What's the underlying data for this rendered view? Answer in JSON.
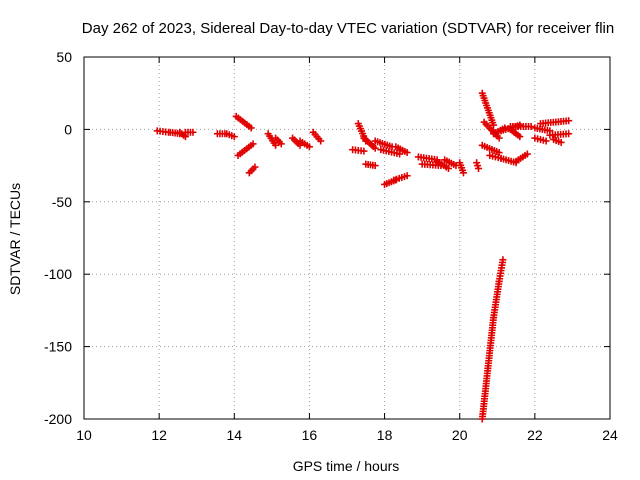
{
  "chart_data": {
    "type": "scatter",
    "title": "Day 262 of 2023, Sidereal Day-to-day VTEC variation (SDTVAR) for receiver flin",
    "xlabel": "GPS time / hours",
    "ylabel": "SDTVAR / TECUs",
    "xlim": [
      10,
      24
    ],
    "ylim": [
      -200,
      50
    ],
    "xticks": [
      "10",
      "12",
      "14",
      "16",
      "18",
      "20",
      "22",
      "24"
    ],
    "yticks": [
      "50",
      "0",
      "-50",
      "-100",
      "-150",
      "-200"
    ],
    "grid": true,
    "marker": "plus",
    "color": "#e00000",
    "segments": [
      {
        "x0": 11.95,
        "y0": -1,
        "x1": 12.25,
        "y1": -2
      },
      {
        "x0": 12.3,
        "y0": -2,
        "x1": 12.55,
        "y1": -3
      },
      {
        "x0": 12.55,
        "y0": -2,
        "x1": 12.7,
        "y1": -5
      },
      {
        "x0": 12.7,
        "y0": -2,
        "x1": 12.9,
        "y1": -2
      },
      {
        "x0": 13.55,
        "y0": -3,
        "x1": 13.75,
        "y1": -3
      },
      {
        "x0": 13.8,
        "y0": -3,
        "x1": 14.0,
        "y1": -5
      },
      {
        "x0": 14.05,
        "y0": 9,
        "x1": 14.45,
        "y1": 1
      },
      {
        "x0": 14.1,
        "y0": -18,
        "x1": 14.5,
        "y1": -10
      },
      {
        "x0": 14.4,
        "y0": -30,
        "x1": 14.55,
        "y1": -26
      },
      {
        "x0": 14.9,
        "y0": -3,
        "x1": 15.1,
        "y1": -11
      },
      {
        "x0": 15.1,
        "y0": -6,
        "x1": 15.25,
        "y1": -10
      },
      {
        "x0": 15.55,
        "y0": -6,
        "x1": 15.75,
        "y1": -11
      },
      {
        "x0": 15.75,
        "y0": -8,
        "x1": 16.0,
        "y1": -12
      },
      {
        "x0": 16.1,
        "y0": -2,
        "x1": 16.3,
        "y1": -8
      },
      {
        "x0": 17.3,
        "y0": 4,
        "x1": 17.5,
        "y1": -8
      },
      {
        "x0": 17.45,
        "y0": -6,
        "x1": 17.75,
        "y1": -13
      },
      {
        "x0": 17.15,
        "y0": -14,
        "x1": 17.45,
        "y1": -15
      },
      {
        "x0": 17.5,
        "y0": -24,
        "x1": 17.75,
        "y1": -25
      },
      {
        "x0": 17.75,
        "y0": -8,
        "x1": 18.2,
        "y1": -12
      },
      {
        "x0": 17.9,
        "y0": -14,
        "x1": 18.4,
        "y1": -17
      },
      {
        "x0": 18.3,
        "y0": -12,
        "x1": 18.6,
        "y1": -16
      },
      {
        "x0": 18.0,
        "y0": -38,
        "x1": 18.3,
        "y1": -35
      },
      {
        "x0": 18.25,
        "y0": -35,
        "x1": 18.6,
        "y1": -32
      },
      {
        "x0": 18.9,
        "y0": -19,
        "x1": 19.4,
        "y1": -21
      },
      {
        "x0": 19.0,
        "y0": -24,
        "x1": 19.5,
        "y1": -25
      },
      {
        "x0": 19.4,
        "y0": -22,
        "x1": 19.7,
        "y1": -27
      },
      {
        "x0": 19.6,
        "y0": -21,
        "x1": 19.9,
        "y1": -25
      },
      {
        "x0": 20.0,
        "y0": -23,
        "x1": 20.1,
        "y1": -30
      },
      {
        "x0": 20.45,
        "y0": -23,
        "x1": 20.5,
        "y1": -27
      },
      {
        "x0": 20.6,
        "y0": 25,
        "x1": 20.9,
        "y1": 3
      },
      {
        "x0": 20.65,
        "y0": 5,
        "x1": 21.05,
        "y1": -6
      },
      {
        "x0": 20.6,
        "y0": -11,
        "x1": 21.05,
        "y1": -16
      },
      {
        "x0": 20.8,
        "y0": -18,
        "x1": 21.1,
        "y1": -20
      },
      {
        "x0": 21.1,
        "y0": -20,
        "x1": 21.5,
        "y1": -23
      },
      {
        "x0": 21.5,
        "y0": -22,
        "x1": 21.8,
        "y1": -17
      },
      {
        "x0": 20.9,
        "y0": -3,
        "x1": 21.2,
        "y1": 1
      },
      {
        "x0": 21.1,
        "y0": -1,
        "x1": 21.6,
        "y1": 3
      },
      {
        "x0": 21.35,
        "y0": 2,
        "x1": 21.9,
        "y1": 2
      },
      {
        "x0": 21.35,
        "y0": 0,
        "x1": 21.6,
        "y1": -5
      },
      {
        "x0": 22.0,
        "y0": 1,
        "x1": 22.4,
        "y1": -1
      },
      {
        "x0": 22.15,
        "y0": 4,
        "x1": 22.9,
        "y1": 6
      },
      {
        "x0": 22.0,
        "y0": -6,
        "x1": 22.3,
        "y1": -8
      },
      {
        "x0": 22.4,
        "y0": -4,
        "x1": 22.9,
        "y1": -3
      },
      {
        "x0": 22.5,
        "y0": -7,
        "x1": 22.7,
        "y1": -9
      },
      {
        "x0": 20.6,
        "y0": -200,
        "x1": 20.75,
        "y1": -165
      },
      {
        "x0": 20.75,
        "y0": -165,
        "x1": 20.9,
        "y1": -130
      },
      {
        "x0": 20.9,
        "y0": -130,
        "x1": 21.05,
        "y1": -105
      },
      {
        "x0": 21.05,
        "y0": -105,
        "x1": 21.15,
        "y1": -90
      }
    ]
  }
}
